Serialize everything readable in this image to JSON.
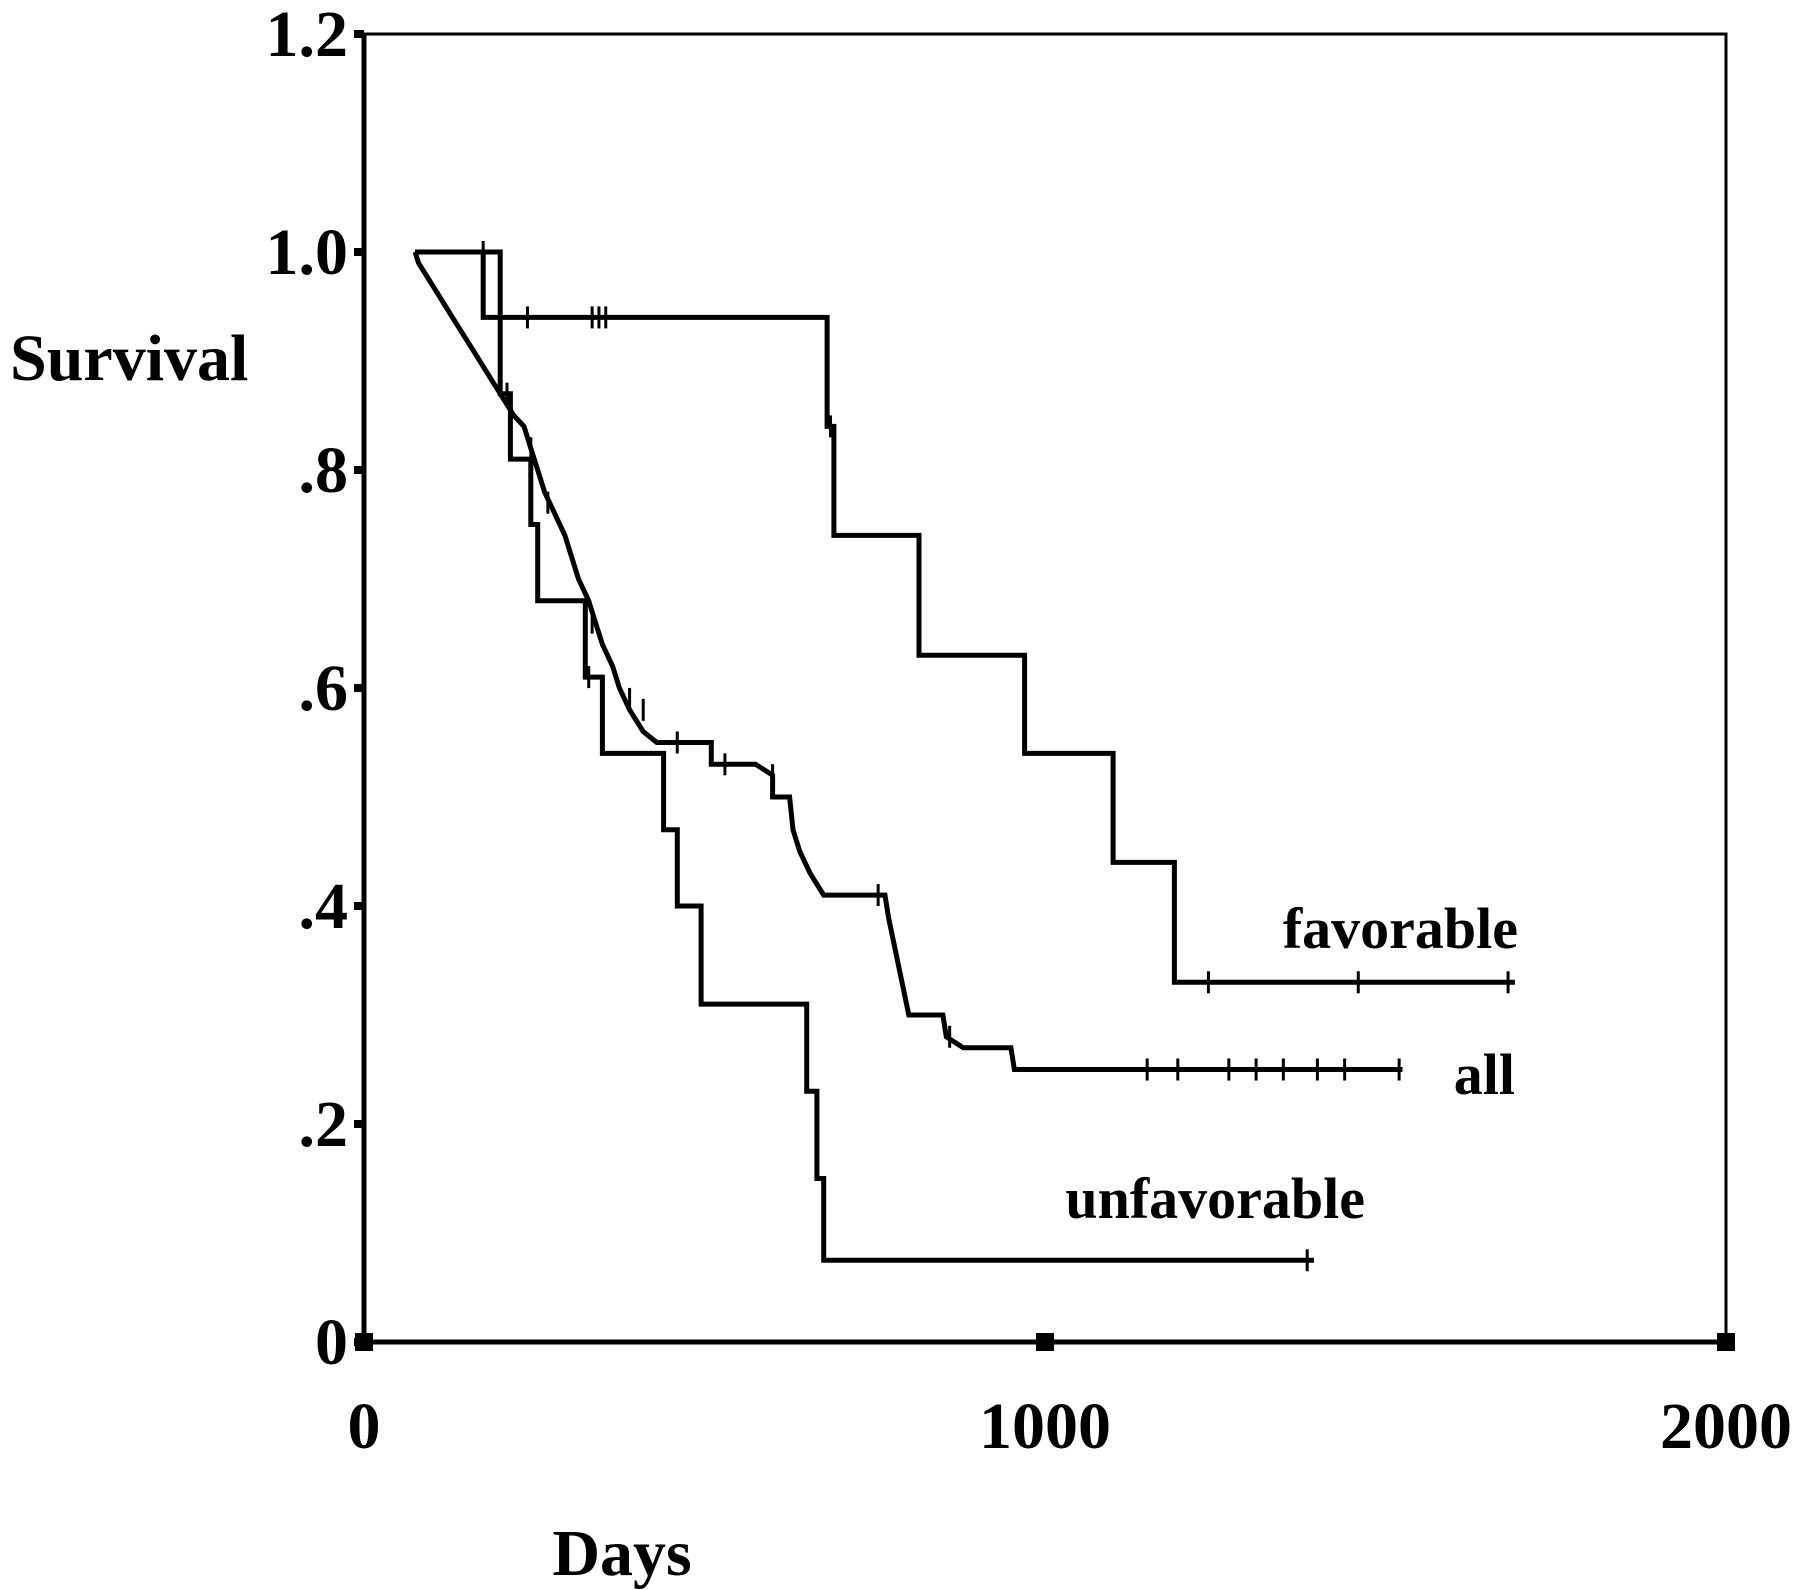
{
  "chart_data": {
    "type": "line",
    "step": true,
    "xlabel": "Days",
    "ylabel": "Survival",
    "xlim": [
      0,
      2000
    ],
    "ylim": [
      0,
      1.2
    ],
    "x_ticks": [
      0,
      1000,
      2000
    ],
    "x_tick_labels": [
      "0",
      "1000",
      "2000"
    ],
    "y_ticks": [
      0,
      0.2,
      0.4,
      0.6,
      0.8,
      1.0,
      1.2
    ],
    "y_tick_labels": [
      "0",
      ".2",
      ".4",
      ".6",
      ".8",
      "1.0",
      "1.2"
    ],
    "grid": false,
    "series": [
      {
        "name": "favorable",
        "points": [
          [
            75,
            1.0
          ],
          [
            175,
            1.0
          ],
          [
            175,
            0.94
          ],
          [
            680,
            0.94
          ],
          [
            680,
            0.84
          ],
          [
            690,
            0.84
          ],
          [
            690,
            0.74
          ],
          [
            815,
            0.74
          ],
          [
            815,
            0.63
          ],
          [
            970,
            0.63
          ],
          [
            970,
            0.54
          ],
          [
            1100,
            0.54
          ],
          [
            1100,
            0.44
          ],
          [
            1190,
            0.44
          ],
          [
            1190,
            0.33
          ],
          [
            1690,
            0.33
          ]
        ],
        "censor_ticks": [
          [
            175,
            1.0
          ],
          [
            240,
            0.94
          ],
          [
            335,
            0.94
          ],
          [
            345,
            0.94
          ],
          [
            355,
            0.94
          ],
          [
            685,
            0.84
          ],
          [
            1240,
            0.33
          ],
          [
            1460,
            0.33
          ],
          [
            1680,
            0.33
          ]
        ]
      },
      {
        "name": "all",
        "points": [
          [
            75,
            1.0
          ],
          [
            80,
            0.99
          ],
          [
            90,
            0.98
          ],
          [
            100,
            0.97
          ],
          [
            110,
            0.96
          ],
          [
            120,
            0.95
          ],
          [
            130,
            0.94
          ],
          [
            140,
            0.93
          ],
          [
            150,
            0.92
          ],
          [
            160,
            0.91
          ],
          [
            170,
            0.9
          ],
          [
            180,
            0.89
          ],
          [
            190,
            0.88
          ],
          [
            200,
            0.87
          ],
          [
            210,
            0.86
          ],
          [
            220,
            0.85
          ],
          [
            235,
            0.84
          ],
          [
            245,
            0.82
          ],
          [
            255,
            0.8
          ],
          [
            265,
            0.78
          ],
          [
            280,
            0.76
          ],
          [
            295,
            0.74
          ],
          [
            305,
            0.72
          ],
          [
            315,
            0.7
          ],
          [
            330,
            0.68
          ],
          [
            340,
            0.66
          ],
          [
            350,
            0.64
          ],
          [
            365,
            0.62
          ],
          [
            375,
            0.6
          ],
          [
            390,
            0.58
          ],
          [
            410,
            0.56
          ],
          [
            430,
            0.55
          ],
          [
            510,
            0.55
          ],
          [
            510,
            0.53
          ],
          [
            575,
            0.53
          ],
          [
            600,
            0.52
          ],
          [
            600,
            0.5
          ],
          [
            625,
            0.5
          ],
          [
            630,
            0.47
          ],
          [
            640,
            0.45
          ],
          [
            655,
            0.43
          ],
          [
            675,
            0.41
          ],
          [
            765,
            0.41
          ],
          [
            770,
            0.39
          ],
          [
            780,
            0.36
          ],
          [
            790,
            0.33
          ],
          [
            800,
            0.3
          ],
          [
            850,
            0.3
          ],
          [
            855,
            0.28
          ],
          [
            880,
            0.27
          ],
          [
            950,
            0.27
          ],
          [
            955,
            0.25
          ],
          [
            1525,
            0.25
          ]
        ],
        "censor_ticks": [
          [
            210,
            0.87
          ],
          [
            245,
            0.82
          ],
          [
            270,
            0.77
          ],
          [
            335,
            0.66
          ],
          [
            390,
            0.59
          ],
          [
            410,
            0.58
          ],
          [
            460,
            0.55
          ],
          [
            530,
            0.53
          ],
          [
            600,
            0.52
          ],
          [
            755,
            0.41
          ],
          [
            860,
            0.28
          ],
          [
            1150,
            0.25
          ],
          [
            1195,
            0.25
          ],
          [
            1270,
            0.25
          ],
          [
            1310,
            0.25
          ],
          [
            1350,
            0.25
          ],
          [
            1400,
            0.25
          ],
          [
            1440,
            0.25
          ],
          [
            1520,
            0.25
          ]
        ]
      },
      {
        "name": "unfavorable",
        "points": [
          [
            75,
            1.0
          ],
          [
            200,
            1.0
          ],
          [
            200,
            0.87
          ],
          [
            215,
            0.87
          ],
          [
            215,
            0.81
          ],
          [
            245,
            0.81
          ],
          [
            245,
            0.75
          ],
          [
            255,
            0.75
          ],
          [
            255,
            0.68
          ],
          [
            325,
            0.68
          ],
          [
            325,
            0.61
          ],
          [
            350,
            0.61
          ],
          [
            350,
            0.54
          ],
          [
            440,
            0.54
          ],
          [
            440,
            0.47
          ],
          [
            460,
            0.47
          ],
          [
            460,
            0.4
          ],
          [
            495,
            0.4
          ],
          [
            495,
            0.31
          ],
          [
            650,
            0.31
          ],
          [
            650,
            0.23
          ],
          [
            665,
            0.23
          ],
          [
            665,
            0.15
          ],
          [
            675,
            0.15
          ],
          [
            675,
            0.075
          ],
          [
            1395,
            0.075
          ]
        ],
        "censor_ticks": [
          [
            330,
            0.61
          ],
          [
            1385,
            0.075
          ]
        ]
      }
    ]
  }
}
